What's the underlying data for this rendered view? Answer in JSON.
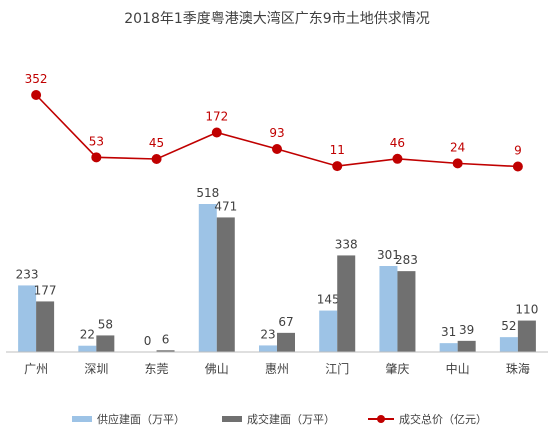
{
  "chart_data": {
    "type": "bar",
    "title": "2018年1季度粤港澳大湾区广东9市土地供求情况",
    "categories": [
      "广州",
      "深圳",
      "东莞",
      "佛山",
      "惠州",
      "江门",
      "肇庆",
      "中山",
      "珠海"
    ],
    "series": [
      {
        "name": "供应建面（万平）",
        "type": "bar",
        "color": "#9dc3e6",
        "values": [
          233,
          22,
          0,
          518,
          23,
          145,
          301,
          31,
          52
        ]
      },
      {
        "name": "成交建面（万平）",
        "type": "bar",
        "color": "#707070",
        "values": [
          177,
          58,
          6,
          471,
          67,
          338,
          283,
          39,
          110
        ]
      },
      {
        "name": "成交总价（亿元）",
        "type": "line",
        "color": "#c00000",
        "values": [
          352,
          53,
          45,
          172,
          93,
          11,
          46,
          24,
          9
        ]
      }
    ],
    "legend_position": "bottom",
    "grid": false
  }
}
